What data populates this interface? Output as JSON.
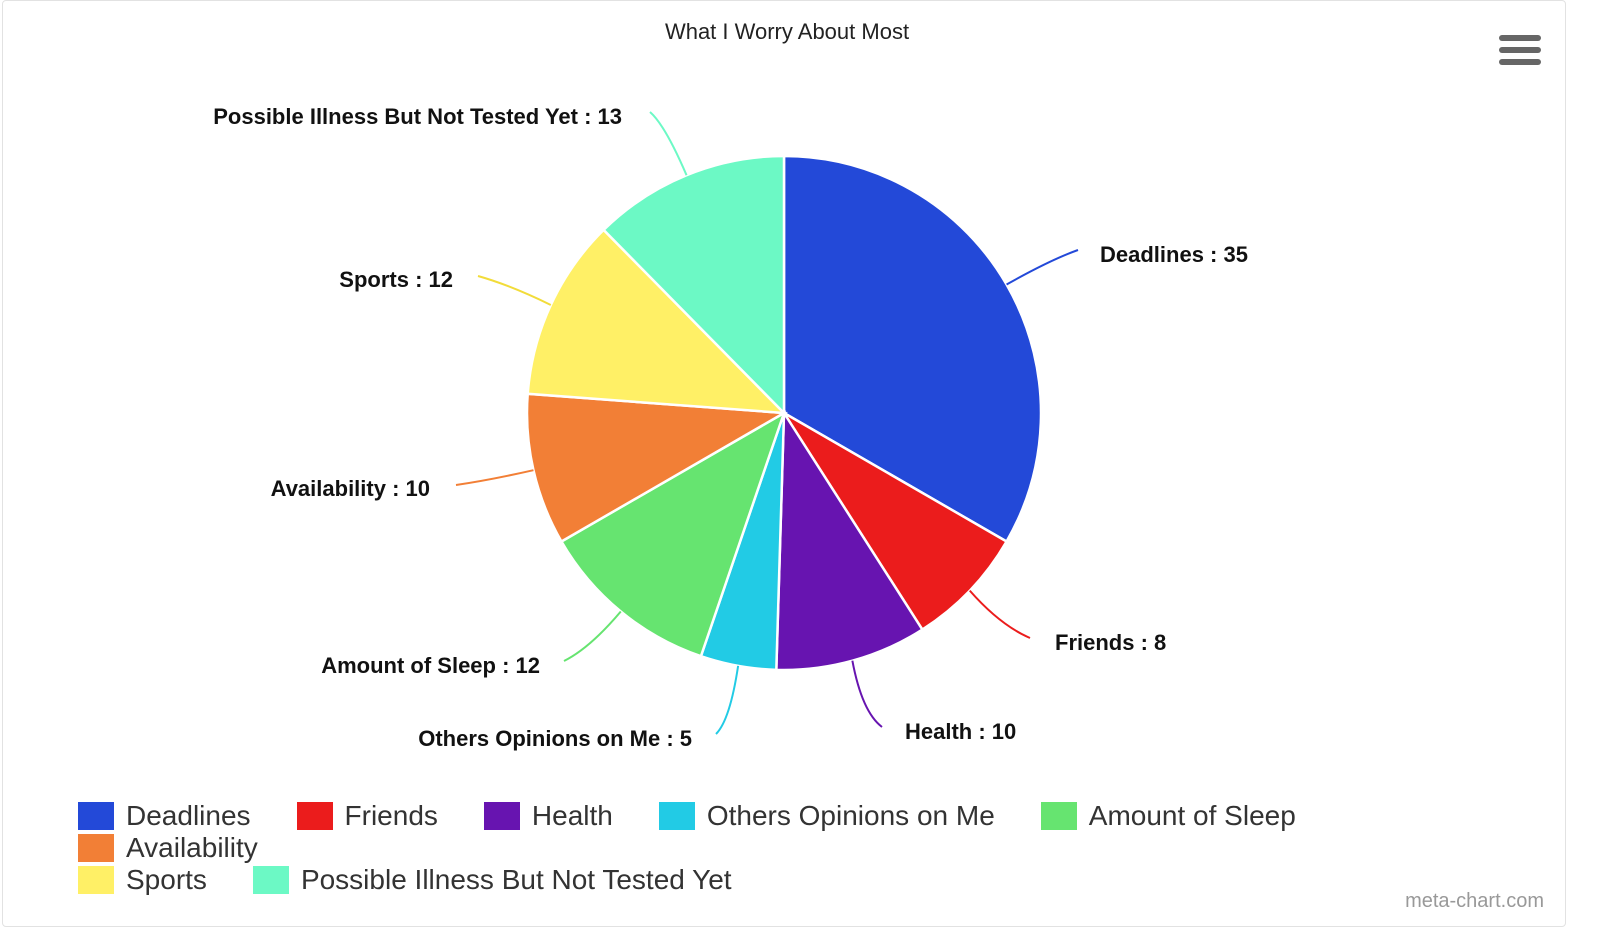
{
  "title": "What I Worry About Most",
  "credit": "meta-chart.com",
  "menu_icon": "hamburger-menu-icon",
  "chart_data": {
    "type": "pie",
    "title": "What I Worry About Most",
    "slices": [
      {
        "label": "Deadlines",
        "value": 35,
        "color": "#2349d8",
        "data_label": "Deadlines : 35"
      },
      {
        "label": "Friends",
        "value": 8,
        "color": "#eb1c1c",
        "data_label": "Friends : 8"
      },
      {
        "label": "Health",
        "value": 10,
        "color": "#6714b0",
        "data_label": "Health : 10"
      },
      {
        "label": "Others Opinions on Me",
        "value": 5,
        "color": "#22cbe5",
        "data_label": "Others Opinions on Me : 5"
      },
      {
        "label": "Amount of Sleep",
        "value": 12,
        "color": "#66e470",
        "data_label": "Amount of Sleep : 12"
      },
      {
        "label": "Availability",
        "value": 10,
        "color": "#f27f36",
        "data_label": "Availability : 10"
      },
      {
        "label": "Sports",
        "value": 12,
        "color": "#fff066",
        "data_label": "Sports : 12"
      },
      {
        "label": "Possible Illness But Not Tested Yet",
        "value": 13,
        "color": "#6cf9c5",
        "data_label": "Possible Illness But Not Tested Yet : 13"
      }
    ],
    "legend_position": "bottom"
  },
  "legend": {
    "rows": [
      [
        {
          "label": "Deadlines",
          "color": "#2349d8"
        },
        {
          "label": "Friends",
          "color": "#eb1c1c"
        },
        {
          "label": "Health",
          "color": "#6714b0"
        },
        {
          "label": "Others Opinions on Me",
          "color": "#22cbe5"
        },
        {
          "label": "Amount of Sleep",
          "color": "#66e470"
        },
        {
          "label": "Availability",
          "color": "#f27f36"
        }
      ],
      [
        {
          "label": "Sports",
          "color": "#fff066"
        },
        {
          "label": "Possible Illness But Not Tested Yet",
          "color": "#6cf9c5"
        }
      ]
    ]
  }
}
